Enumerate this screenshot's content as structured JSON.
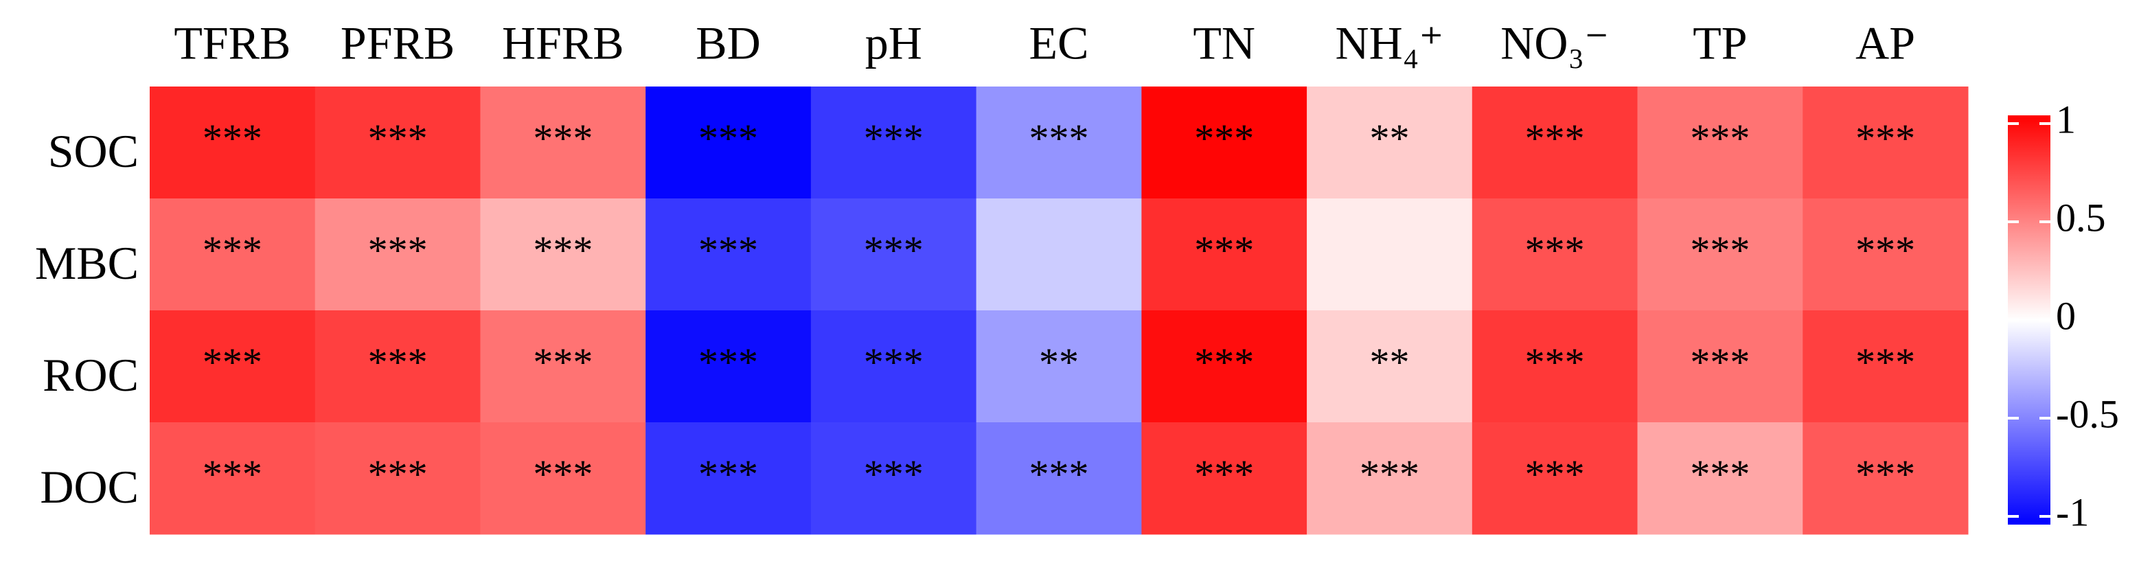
{
  "chart_data": {
    "type": "heatmap",
    "x": [
      "TFRB",
      "PFRB",
      "HFRB",
      "BD",
      "pH",
      "EC",
      "TN",
      "NH₄⁺",
      "NO₃⁻",
      "TP",
      "AP"
    ],
    "y": [
      "SOC",
      "MBC",
      "ROC",
      "DOC"
    ],
    "values": [
      [
        0.85,
        0.78,
        0.55,
        -0.98,
        -0.78,
        -0.42,
        0.98,
        0.2,
        0.78,
        0.55,
        0.7
      ],
      [
        0.6,
        0.45,
        0.3,
        -0.78,
        -0.7,
        -0.2,
        0.82,
        0.08,
        0.68,
        0.5,
        0.62
      ],
      [
        0.82,
        0.75,
        0.55,
        -0.95,
        -0.78,
        -0.38,
        0.95,
        0.18,
        0.78,
        0.55,
        0.75
      ],
      [
        0.68,
        0.65,
        0.6,
        -0.8,
        -0.75,
        -0.52,
        0.8,
        0.3,
        0.75,
        0.35,
        0.65
      ]
    ],
    "significance": [
      [
        "***",
        "***",
        "***",
        "***",
        "***",
        "***",
        "***",
        "**",
        "***",
        "***",
        "***"
      ],
      [
        "***",
        "***",
        "***",
        "***",
        "***",
        null,
        "***",
        null,
        "***",
        "***",
        "***"
      ],
      [
        "***",
        "***",
        "***",
        "***",
        "***",
        "**",
        "***",
        "**",
        "***",
        "***",
        "***"
      ],
      [
        "***",
        "***",
        "***",
        "***",
        "***",
        "***",
        "***",
        "***",
        "***",
        "***",
        "***"
      ]
    ],
    "colors": [
      "#0000ff",
      "#ffffff",
      "#ff0000"
    ],
    "clim": [
      -1,
      1
    ],
    "cticks": [
      -1,
      -0.5,
      0,
      0.5,
      1
    ]
  }
}
